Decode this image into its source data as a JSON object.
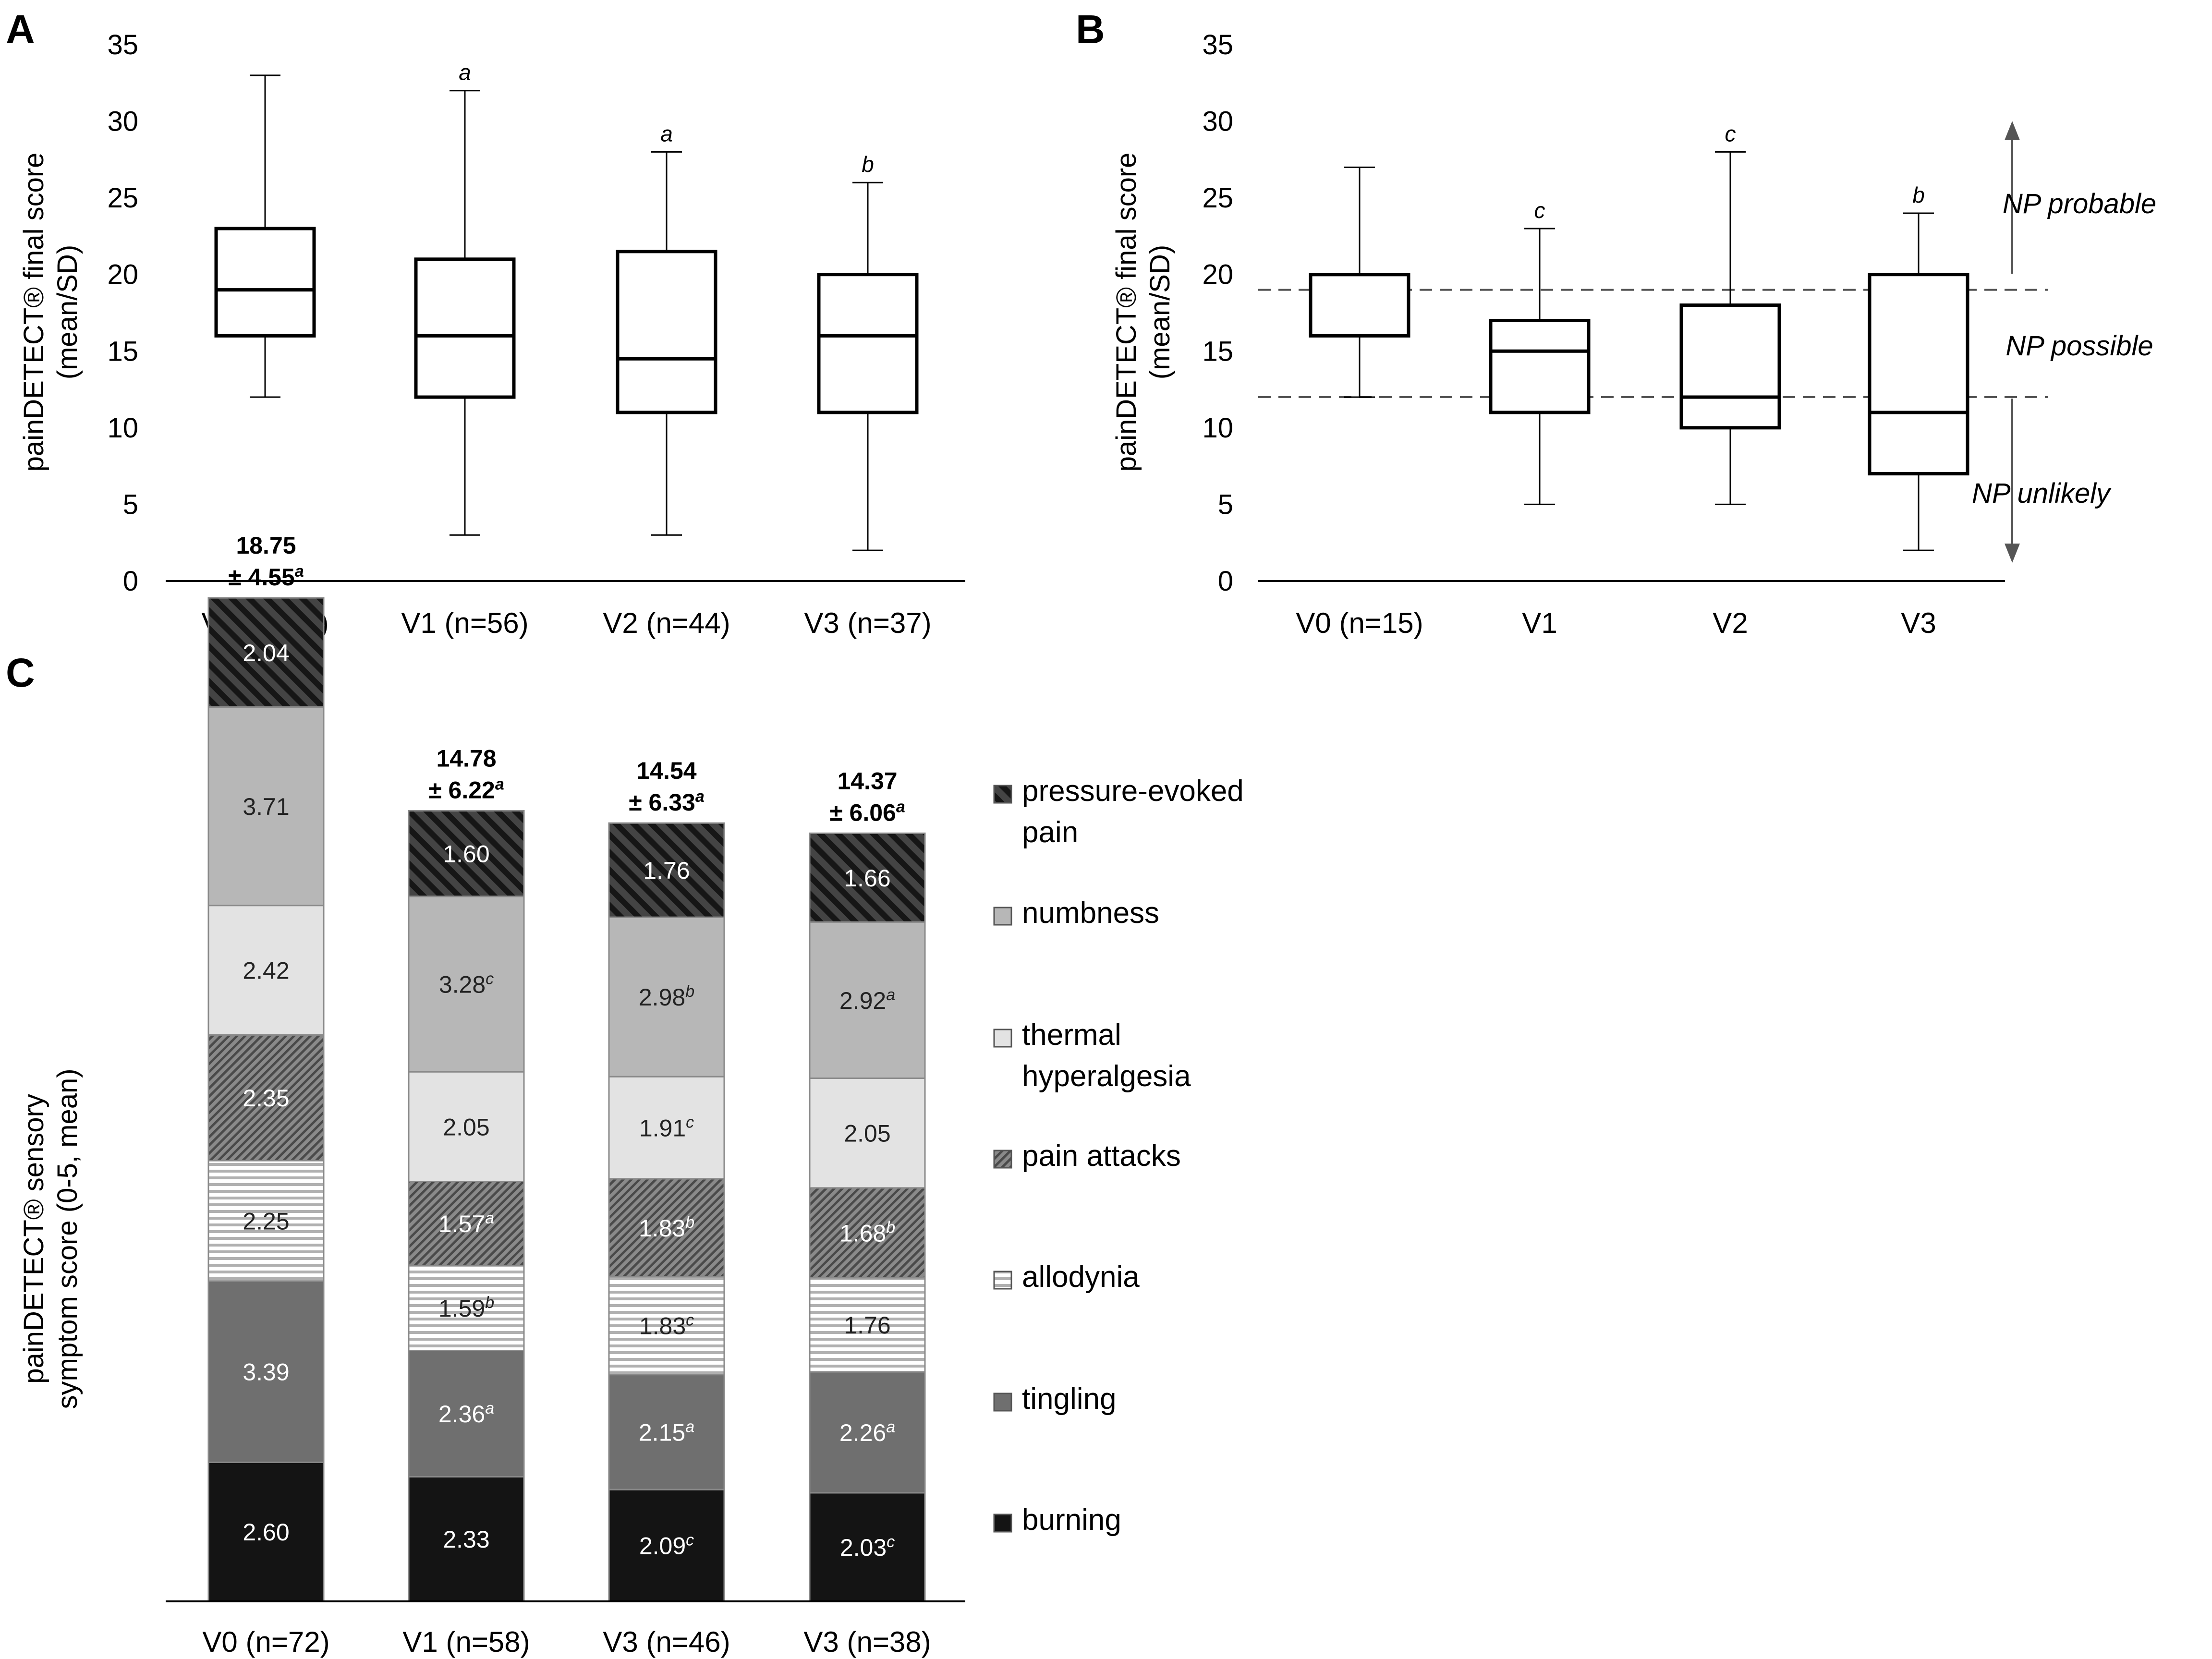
{
  "colors": {
    "axis": "#000000",
    "guide": "#555555",
    "burning": "#141414",
    "tingling": "#6f6f6f",
    "allodynia_stripe": "#a9a9a9",
    "pain_attacks": "#7a7a7a",
    "thermal": "#e3e3e3",
    "numbness": "#b7b7b7",
    "pressure": "#3a3a3a"
  },
  "chart_data": [
    {
      "panel": "A",
      "type": "box",
      "ylabel_line1": "painDETECT® final score",
      "ylabel_line2": "(mean/SD)",
      "ylim": [
        0,
        35
      ],
      "yticks": [
        "0",
        "5",
        "10",
        "15",
        "20",
        "25",
        "30",
        "35"
      ],
      "categories": [
        "V0 (n=72)",
        "V1 (n=56)",
        "V2 (n=44)",
        "V3 (n=37)"
      ],
      "boxes": [
        {
          "min": 12,
          "q1": 16,
          "median": 19,
          "q3": 23,
          "max": 33,
          "mark": ""
        },
        {
          "min": 3,
          "q1": 12,
          "median": 16,
          "q3": 21,
          "max": 32,
          "mark": "a"
        },
        {
          "min": 3,
          "q1": 11,
          "median": 14.5,
          "q3": 21.5,
          "max": 28,
          "mark": "a"
        },
        {
          "min": 2,
          "q1": 11,
          "median": 16,
          "q3": 20,
          "max": 26,
          "mark": "b"
        }
      ]
    },
    {
      "panel": "B",
      "type": "box",
      "ylabel_line1": "painDETECT® final  score",
      "ylabel_line2": "(mean/SD)",
      "ylim": [
        0,
        35
      ],
      "yticks": [
        "0",
        "5",
        "10",
        "15",
        "20",
        "25",
        "30",
        "35"
      ],
      "categories": [
        "V0 (n=15)",
        "V1",
        "V2",
        "V3"
      ],
      "boxes": [
        {
          "min": 12,
          "q1": 16,
          "median": 20,
          "q3": 20,
          "max": 27,
          "mark": ""
        },
        {
          "min": 5,
          "q1": 11,
          "median": 15,
          "q3": 17,
          "max": 23,
          "mark": "c"
        },
        {
          "min": 5,
          "q1": 10,
          "median": 12,
          "q3": 18,
          "max": 28,
          "mark": "c"
        },
        {
          "min": 2,
          "q1": 7,
          "median": 11,
          "q3": 20,
          "max": 24,
          "mark": "b"
        }
      ],
      "thresholds": [
        19,
        12
      ],
      "zones": [
        "NP probable",
        "NP possible",
        "NP unlikely"
      ]
    },
    {
      "panel": "C",
      "type": "stacked-bar",
      "ylabel_line1": "painDETECT® sensory",
      "ylabel_line2": "symptom score (0-5, mean)",
      "categories": [
        "V0 (n=72)",
        "V1 (n=58)",
        "V3 (n=46)",
        "V3 (n=38)"
      ],
      "totals": [
        {
          "value": "18.75",
          "sd": "± 4.55",
          "mark": "a"
        },
        {
          "value": "14.78",
          "sd": "± 6.22",
          "mark": "a"
        },
        {
          "value": "14.54",
          "sd": "± 6.33",
          "mark": "a"
        },
        {
          "value": "14.37",
          "sd": "± 6.06",
          "mark": "a"
        }
      ],
      "series": [
        {
          "name": "burning",
          "values": [
            2.6,
            2.33,
            2.09,
            2.03
          ],
          "labels": [
            "2.60",
            "2.33",
            "2.09",
            "2.03"
          ],
          "marks": [
            "",
            "",
            "c",
            "c"
          ]
        },
        {
          "name": "tingling",
          "values": [
            3.39,
            2.36,
            2.15,
            2.26
          ],
          "labels": [
            "3.39",
            "2.36",
            "2.15",
            "2.26"
          ],
          "marks": [
            "",
            "a",
            "a",
            "a"
          ]
        },
        {
          "name": "allodynia",
          "values": [
            2.25,
            1.59,
            1.83,
            1.76
          ],
          "labels": [
            "2.25",
            "1.59",
            "1.83",
            "1.76"
          ],
          "marks": [
            "",
            "b",
            "c",
            ""
          ]
        },
        {
          "name": "pain attacks",
          "values": [
            2.35,
            1.57,
            1.83,
            1.68
          ],
          "labels": [
            "2.35",
            "1.57",
            "1.83",
            "1.68"
          ],
          "marks": [
            "",
            "a",
            "b",
            "b"
          ]
        },
        {
          "name": "thermal hyperalgesia",
          "values": [
            2.42,
            2.05,
            1.91,
            2.05
          ],
          "labels": [
            "2.42",
            "2.05",
            "1.91",
            "2.05"
          ],
          "marks": [
            "",
            "",
            "c",
            ""
          ]
        },
        {
          "name": "numbness",
          "values": [
            3.71,
            3.28,
            2.98,
            2.92
          ],
          "labels": [
            "3.71",
            "3.28",
            "2.98",
            "2.92"
          ],
          "marks": [
            "",
            "c",
            "b",
            "a"
          ]
        },
        {
          "name": "pressure-evoked pain",
          "values": [
            2.04,
            1.6,
            1.76,
            1.66
          ],
          "labels": [
            "2.04",
            "1.60",
            "1.76",
            "1.66"
          ],
          "marks": [
            "",
            "",
            "",
            ""
          ]
        }
      ],
      "legend_order": [
        "pressure-evoked pain",
        "numbness",
        "thermal hyperalgesia",
        "pain attacks",
        "allodynia",
        "tingling",
        "burning"
      ],
      "legend_labels": [
        [
          "pressure-evoked",
          "pain"
        ],
        [
          "numbness"
        ],
        [
          "thermal",
          "hyperalgesia"
        ],
        [
          "pain attacks"
        ],
        [
          "allodynia"
        ],
        [
          "tingling"
        ],
        [
          "burning"
        ]
      ]
    }
  ]
}
